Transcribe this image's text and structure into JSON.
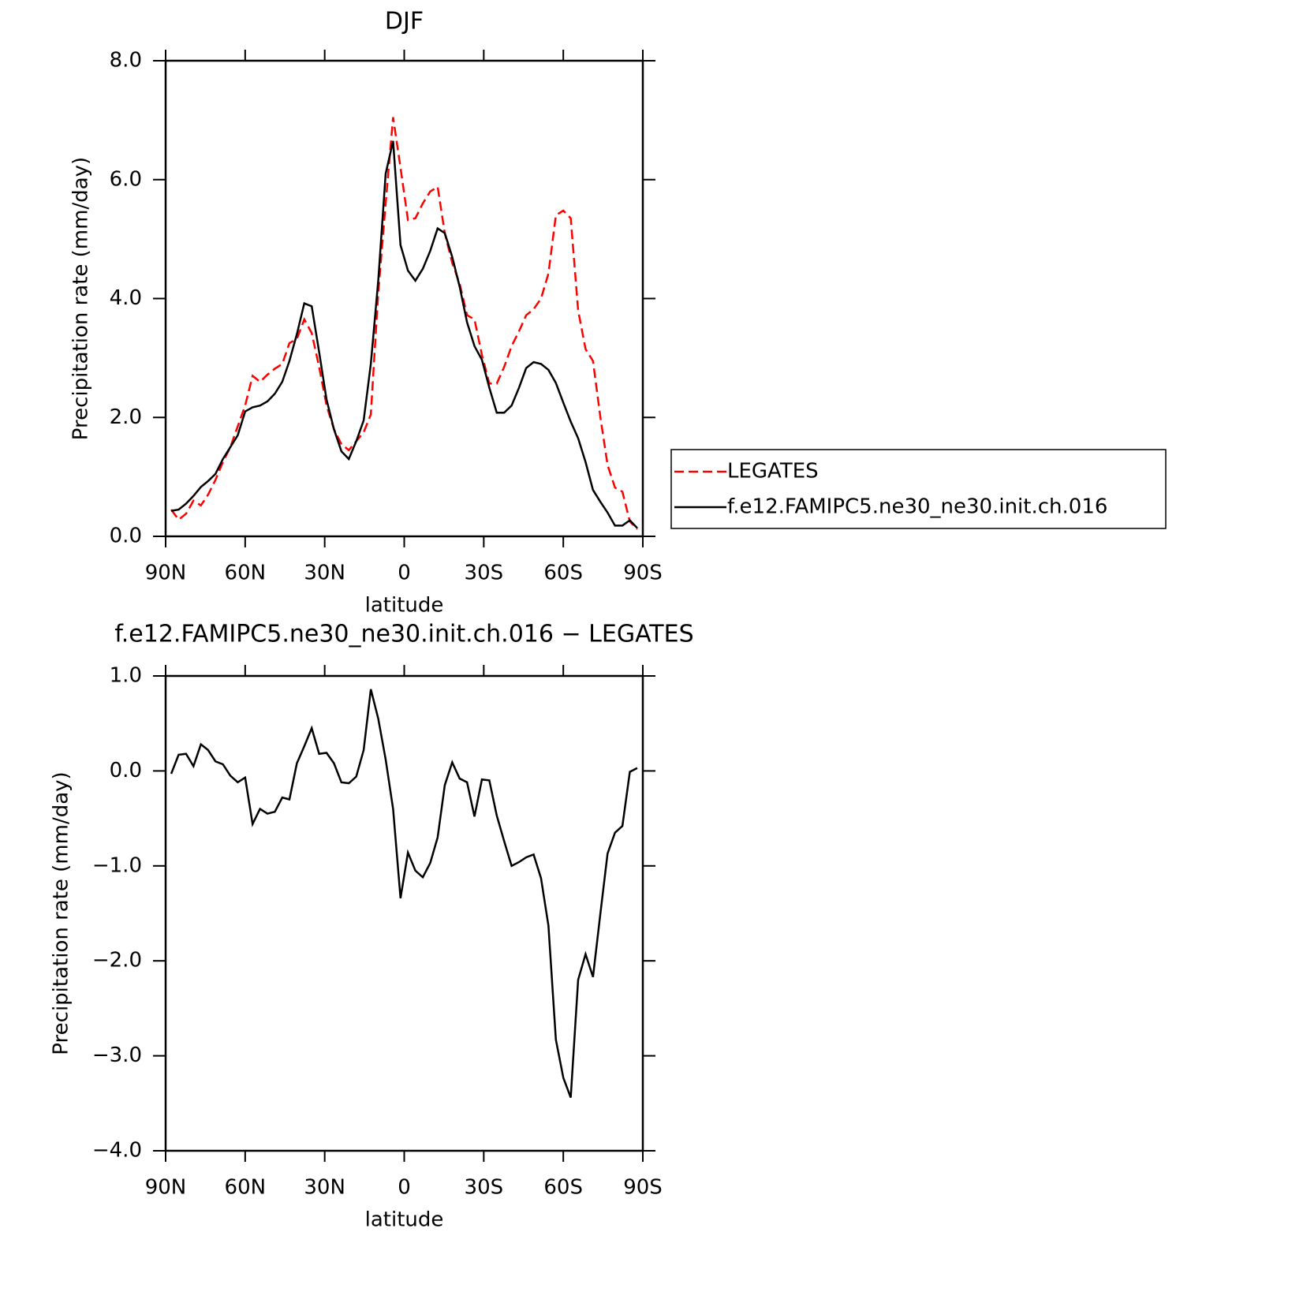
{
  "chart_data": [
    {
      "type": "line",
      "title": "DJF",
      "xlabel": "latitude",
      "ylabel": "Precipitation rate (mm/day)",
      "xlim": [
        90,
        -90
      ],
      "xticks": [
        {
          "value": 90,
          "label": "90N"
        },
        {
          "value": 60,
          "label": "60N"
        },
        {
          "value": 30,
          "label": "30N"
        },
        0,
        {
          "value": -30,
          "label": "30S"
        },
        {
          "value": -60,
          "label": "60S"
        },
        {
          "value": -90,
          "label": "90S"
        }
      ],
      "ylim": [
        0,
        8
      ],
      "yticks": [
        {
          "value": 0,
          "label": "0.0"
        },
        {
          "value": 2,
          "label": "2.0"
        },
        {
          "value": 4,
          "label": "4.0"
        },
        {
          "value": 6,
          "label": "6.0"
        },
        {
          "value": 8,
          "label": "8.0"
        }
      ],
      "legend": "outside right",
      "x": [
        87.9,
        85.1,
        82.3,
        79.5,
        76.7,
        74.0,
        71.2,
        68.4,
        65.6,
        62.8,
        60.0,
        57.2,
        54.4,
        51.6,
        48.8,
        46.0,
        43.3,
        40.5,
        37.7,
        34.9,
        32.1,
        29.3,
        26.5,
        23.7,
        20.9,
        18.1,
        15.3,
        12.6,
        9.8,
        7.0,
        4.2,
        1.4,
        -1.4,
        -4.2,
        -7.0,
        -9.8,
        -12.6,
        -15.3,
        -18.1,
        -20.9,
        -23.7,
        -26.5,
        -29.3,
        -32.1,
        -34.9,
        -37.7,
        -40.5,
        -43.3,
        -46.0,
        -48.8,
        -51.6,
        -54.4,
        -57.2,
        -60.0,
        -62.8,
        -65.6,
        -68.4,
        -71.2,
        -74.0,
        -76.7,
        -79.5,
        -82.3,
        -85.1,
        -87.9
      ],
      "series": [
        {
          "name": "LEGATES",
          "color": "#ff0000",
          "dash": "dashed",
          "values": [
            0.45,
            0.28,
            0.38,
            0.6,
            0.52,
            0.7,
            0.95,
            1.25,
            1.5,
            1.85,
            2.2,
            2.7,
            2.6,
            2.72,
            2.82,
            2.9,
            3.25,
            3.32,
            3.65,
            3.42,
            2.85,
            2.2,
            1.8,
            1.55,
            1.45,
            1.6,
            1.75,
            2.05,
            4.1,
            5.6,
            7.05,
            6.2,
            5.32,
            5.35,
            5.6,
            5.8,
            5.88,
            5.1,
            4.6,
            4.25,
            3.72,
            3.65,
            3.05,
            2.57,
            2.57,
            2.85,
            3.2,
            3.45,
            3.72,
            3.82,
            4.0,
            4.42,
            5.4,
            5.48,
            5.35,
            3.8,
            3.15,
            2.95,
            2.0,
            1.2,
            0.82,
            0.75,
            0.25,
            0.12
          ]
        },
        {
          "name": "f.e12.FAMIPC5.ne30_ne30.init.ch.016",
          "color": "#000000",
          "dash": "solid",
          "values": [
            0.43,
            0.45,
            0.55,
            0.68,
            0.83,
            0.93,
            1.05,
            1.3,
            1.5,
            1.7,
            2.1,
            2.17,
            2.2,
            2.27,
            2.4,
            2.6,
            2.95,
            3.4,
            3.92,
            3.87,
            3.1,
            2.3,
            1.8,
            1.43,
            1.3,
            1.6,
            1.95,
            2.9,
            4.3,
            6.1,
            6.65,
            4.9,
            4.47,
            4.3,
            4.5,
            4.8,
            5.18,
            5.1,
            4.7,
            4.2,
            3.6,
            3.2,
            2.97,
            2.5,
            2.08,
            2.08,
            2.2,
            2.5,
            2.83,
            2.93,
            2.9,
            2.8,
            2.58,
            2.25,
            1.93,
            1.65,
            1.25,
            0.78,
            0.58,
            0.4,
            0.18,
            0.18,
            0.27,
            0.14
          ]
        }
      ]
    },
    {
      "type": "line",
      "title": "f.e12.FAMIPC5.ne30_ne30.init.ch.016 − LEGATES",
      "xlabel": "latitude",
      "ylabel": "Precipitation rate (mm/day)",
      "xlim": [
        90,
        -90
      ],
      "xticks": [
        {
          "value": 90,
          "label": "90N"
        },
        {
          "value": 60,
          "label": "60N"
        },
        {
          "value": 30,
          "label": "30N"
        },
        0,
        {
          "value": -30,
          "label": "30S"
        },
        {
          "value": -60,
          "label": "60S"
        },
        {
          "value": -90,
          "label": "90S"
        }
      ],
      "ylim": [
        -4,
        1
      ],
      "yticks": [
        {
          "value": 1,
          "label": "1.0"
        },
        {
          "value": 0,
          "label": "0.0"
        },
        {
          "value": -1,
          "label": "−1.0"
        },
        {
          "value": -2,
          "label": "−2.0"
        },
        {
          "value": -3,
          "label": "−3.0"
        },
        {
          "value": -4,
          "label": "−4.0"
        }
      ],
      "x": [
        87.9,
        85.1,
        82.3,
        79.5,
        76.7,
        74.0,
        71.2,
        68.4,
        65.6,
        62.8,
        60.0,
        57.2,
        54.4,
        51.6,
        48.8,
        46.0,
        43.3,
        40.5,
        37.7,
        34.9,
        32.1,
        29.3,
        26.5,
        23.7,
        20.9,
        18.1,
        15.3,
        12.6,
        9.8,
        7.0,
        4.2,
        1.4,
        -1.4,
        -4.2,
        -7.0,
        -9.8,
        -12.6,
        -15.3,
        -18.1,
        -20.9,
        -23.7,
        -26.5,
        -29.3,
        -32.1,
        -34.9,
        -37.7,
        -40.5,
        -43.3,
        -46.0,
        -48.8,
        -51.6,
        -54.4,
        -57.2,
        -60.0,
        -62.8,
        -65.6,
        -68.4,
        -71.2,
        -74.0,
        -76.7,
        -79.5,
        -82.3,
        -85.1,
        -87.9
      ],
      "series": [
        {
          "color": "#000000",
          "dash": "solid",
          "values": [
            -0.03,
            0.17,
            0.18,
            0.05,
            0.28,
            0.22,
            0.1,
            0.07,
            -0.05,
            -0.12,
            -0.07,
            -0.56,
            -0.4,
            -0.45,
            -0.43,
            -0.28,
            -0.3,
            0.08,
            0.26,
            0.45,
            0.18,
            0.19,
            0.08,
            -0.12,
            -0.13,
            -0.06,
            0.22,
            0.86,
            0.55,
            0.12,
            -0.4,
            -1.34,
            -0.86,
            -1.05,
            -1.12,
            -0.97,
            -0.7,
            -0.15,
            0.09,
            -0.08,
            -0.12,
            -0.48,
            -0.09,
            -0.1,
            -0.47,
            -0.74,
            -1.0,
            -0.96,
            -0.91,
            -0.88,
            -1.13,
            -1.63,
            -2.83,
            -3.23,
            -3.44,
            -2.2,
            -1.93,
            -2.17,
            -1.5,
            -0.87,
            -0.65,
            -0.58,
            -0.01,
            0.03
          ]
        }
      ]
    }
  ]
}
